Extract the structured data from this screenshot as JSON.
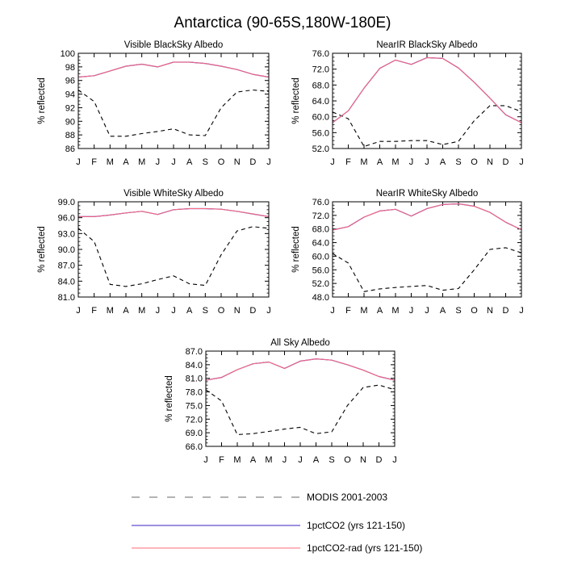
{
  "figure": {
    "title": "Antarctica (90-65S,180W-180E)",
    "legend": [
      {
        "label": "MODIS 2001-2003",
        "color": "#000000",
        "style": "dashed"
      },
      {
        "label": "1pctCO2 (yrs 121-150)",
        "color": "#3b1fbf",
        "style": "solid"
      },
      {
        "label": "1pctCO2-rad (yrs 121-150)",
        "color": "#ff6b7a",
        "style": "solid"
      }
    ]
  },
  "chart_data": [
    {
      "type": "line",
      "title": "Visible BlackSky Albedo",
      "xlabel": "",
      "ylabel": "% reflected",
      "categories": [
        "J",
        "F",
        "M",
        "A",
        "M",
        "J",
        "J",
        "A",
        "S",
        "O",
        "N",
        "D",
        "J"
      ],
      "ylim": [
        86,
        100
      ],
      "yticks": [
        "86",
        "88",
        "90",
        "92",
        "94",
        "96",
        "98",
        "100"
      ],
      "grid": false,
      "series": [
        {
          "name": "MODIS 2001-2003",
          "values": [
            94.6,
            92.9,
            87.8,
            87.8,
            88.2,
            88.5,
            88.9,
            88.0,
            87.9,
            92.0,
            94.3,
            94.6,
            94.4
          ]
        },
        {
          "name": "1pctCO2 (yrs 121-150)",
          "values": [
            96.5,
            96.7,
            97.4,
            98.1,
            98.4,
            98.0,
            98.7,
            98.7,
            98.5,
            98.1,
            97.6,
            96.9,
            96.5
          ]
        },
        {
          "name": "1pctCO2-rad (yrs 121-150)",
          "values": [
            96.5,
            96.7,
            97.4,
            98.1,
            98.4,
            98.0,
            98.7,
            98.7,
            98.5,
            98.1,
            97.6,
            96.9,
            96.5
          ]
        }
      ]
    },
    {
      "type": "line",
      "title": "NearIR BlackSky Albedo",
      "xlabel": "",
      "ylabel": "% reflected",
      "categories": [
        "J",
        "F",
        "M",
        "A",
        "M",
        "J",
        "J",
        "A",
        "S",
        "O",
        "N",
        "D",
        "J"
      ],
      "ylim": [
        52,
        76
      ],
      "yticks": [
        "52.0",
        "56.0",
        "60.0",
        "64.0",
        "68.0",
        "72.0",
        "76.0"
      ],
      "grid": false,
      "series": [
        {
          "name": "MODIS 2001-2003",
          "values": [
            61.2,
            59.5,
            52.5,
            53.8,
            53.8,
            54.0,
            54.0,
            53.0,
            53.8,
            59.0,
            62.8,
            62.8,
            61.3
          ]
        },
        {
          "name": "1pctCO2 (yrs 121-150)",
          "values": [
            58.5,
            61.5,
            67.2,
            72.2,
            74.3,
            73.2,
            74.9,
            74.7,
            72.3,
            68.7,
            64.7,
            60.5,
            58.5
          ]
        },
        {
          "name": "1pctCO2-rad (yrs 121-150)",
          "values": [
            58.5,
            61.5,
            67.2,
            72.2,
            74.3,
            73.2,
            74.9,
            74.7,
            72.3,
            68.7,
            64.7,
            60.5,
            58.5
          ]
        }
      ]
    },
    {
      "type": "line",
      "title": "Visible WhiteSky Albedo",
      "xlabel": "",
      "ylabel": "% reflected",
      "categories": [
        "J",
        "F",
        "M",
        "A",
        "M",
        "J",
        "J",
        "A",
        "S",
        "O",
        "N",
        "D",
        "J"
      ],
      "ylim": [
        81,
        99
      ],
      "yticks": [
        "81.0",
        "84.0",
        "87.0",
        "90.0",
        "93.0",
        "96.0",
        "99.0"
      ],
      "grid": false,
      "series": [
        {
          "name": "MODIS 2001-2003",
          "values": [
            94.0,
            91.5,
            83.4,
            83.0,
            83.5,
            84.3,
            85.0,
            83.5,
            83.2,
            89.0,
            93.5,
            94.3,
            94.0
          ]
        },
        {
          "name": "1pctCO2 (yrs 121-150)",
          "values": [
            96.2,
            96.2,
            96.5,
            96.9,
            97.2,
            96.6,
            97.5,
            97.7,
            97.7,
            97.6,
            97.2,
            96.7,
            96.2
          ]
        },
        {
          "name": "1pctCO2-rad (yrs 121-150)",
          "values": [
            96.2,
            96.2,
            96.5,
            96.9,
            97.2,
            96.6,
            97.5,
            97.7,
            97.7,
            97.6,
            97.2,
            96.7,
            96.2
          ]
        }
      ]
    },
    {
      "type": "line",
      "title": "NearIR WhiteSky Albedo",
      "xlabel": "",
      "ylabel": "% reflected",
      "categories": [
        "J",
        "F",
        "M",
        "A",
        "M",
        "J",
        "J",
        "A",
        "S",
        "O",
        "N",
        "D",
        "J"
      ],
      "ylim": [
        48,
        76
      ],
      "yticks": [
        "48.0",
        "52.0",
        "56.0",
        "60.0",
        "64.0",
        "68.0",
        "72.0",
        "76.0"
      ],
      "grid": false,
      "series": [
        {
          "name": "MODIS 2001-2003",
          "values": [
            60.8,
            58.0,
            49.6,
            50.4,
            50.8,
            51.1,
            51.4,
            50.0,
            50.5,
            56.0,
            62.0,
            62.5,
            61.0
          ]
        },
        {
          "name": "1pctCO2 (yrs 121-150)",
          "values": [
            67.7,
            68.7,
            71.5,
            73.3,
            73.8,
            71.8,
            74.0,
            75.2,
            75.4,
            74.7,
            72.9,
            70.0,
            67.8
          ]
        },
        {
          "name": "1pctCO2-rad (yrs 121-150)",
          "values": [
            67.7,
            68.7,
            71.5,
            73.3,
            73.8,
            71.8,
            74.0,
            75.2,
            75.4,
            74.7,
            72.9,
            70.0,
            67.8
          ]
        }
      ]
    },
    {
      "type": "line",
      "title": "All Sky Albedo",
      "xlabel": "",
      "ylabel": "% reflected",
      "categories": [
        "J",
        "F",
        "M",
        "A",
        "M",
        "J",
        "J",
        "A",
        "S",
        "O",
        "N",
        "D",
        "J"
      ],
      "ylim": [
        66,
        87
      ],
      "yticks": [
        "66.0",
        "69.0",
        "72.0",
        "75.0",
        "78.0",
        "81.0",
        "84.0",
        "87.0"
      ],
      "grid": false,
      "series": [
        {
          "name": "MODIS 2001-2003",
          "values": [
            78.5,
            76.0,
            68.6,
            68.8,
            69.3,
            69.8,
            70.2,
            68.8,
            69.2,
            75.0,
            79.0,
            79.5,
            78.5
          ]
        },
        {
          "name": "1pctCO2 (yrs 121-150)",
          "values": [
            80.6,
            81.2,
            82.9,
            84.2,
            84.6,
            83.2,
            84.8,
            85.3,
            85.0,
            84.0,
            82.8,
            81.4,
            80.6
          ]
        },
        {
          "name": "1pctCO2-rad (yrs 121-150)",
          "values": [
            80.6,
            81.2,
            82.9,
            84.2,
            84.6,
            83.2,
            84.8,
            85.3,
            85.0,
            84.0,
            82.8,
            81.4,
            80.6
          ]
        }
      ]
    }
  ]
}
